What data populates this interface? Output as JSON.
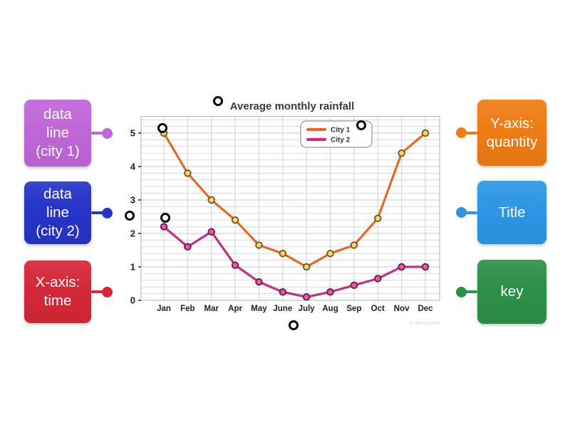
{
  "activity": {
    "left_labels": [
      {
        "id": "data-line-city1",
        "text": "data\nline\n(city 1)",
        "color": "#c066d8"
      },
      {
        "id": "data-line-city2",
        "text": "data\nline\n(city 2)",
        "color": "#2634c8"
      },
      {
        "id": "x-axis-time",
        "text": "X-axis:\ntime",
        "color": "#d52737"
      }
    ],
    "right_labels": [
      {
        "id": "y-axis-quantity",
        "text": "Y-axis:\nquantity",
        "color": "#ee7c14"
      },
      {
        "id": "title",
        "text": "Title",
        "color": "#2d95e5"
      },
      {
        "id": "key",
        "text": "key",
        "color": "#2d9048"
      }
    ],
    "target_points": [
      {
        "x": 306,
        "y": 142
      },
      {
        "x": 228,
        "y": 180
      },
      {
        "x": 507,
        "y": 176
      },
      {
        "x": 182,
        "y": 303
      },
      {
        "x": 232,
        "y": 306
      },
      {
        "x": 412,
        "y": 457
      }
    ]
  },
  "chart_data": {
    "type": "line",
    "title": "Average monthly rainfall",
    "categories": [
      "Jan",
      "Feb",
      "Mar",
      "Apr",
      "May",
      "June",
      "July",
      "Aug",
      "Sep",
      "Oct",
      "Nov",
      "Dec"
    ],
    "series": [
      {
        "name": "City 1",
        "color": "#e06a2b",
        "marker_fill": "#f4d67c",
        "marker_ring": "#7a5618",
        "values": [
          5,
          3.8,
          3,
          2.4,
          1.65,
          1.4,
          1,
          1.4,
          1.65,
          2.45,
          4.4,
          5
        ]
      },
      {
        "name": "City 2",
        "color": "#c03182",
        "marker_fill": "#e05ca8",
        "marker_ring": "#701a4c",
        "values": [
          2.2,
          1.6,
          2.05,
          1.05,
          0.55,
          0.25,
          0.1,
          0.25,
          0.45,
          0.65,
          1,
          1
        ]
      }
    ],
    "xlabel": "",
    "ylabel": "",
    "ylim": [
      0,
      5.5
    ],
    "yticks": [
      0,
      1,
      2,
      3,
      4,
      5
    ],
    "grid": true,
    "legend_position": "top-right",
    "watermark": "© fyeva.com"
  }
}
